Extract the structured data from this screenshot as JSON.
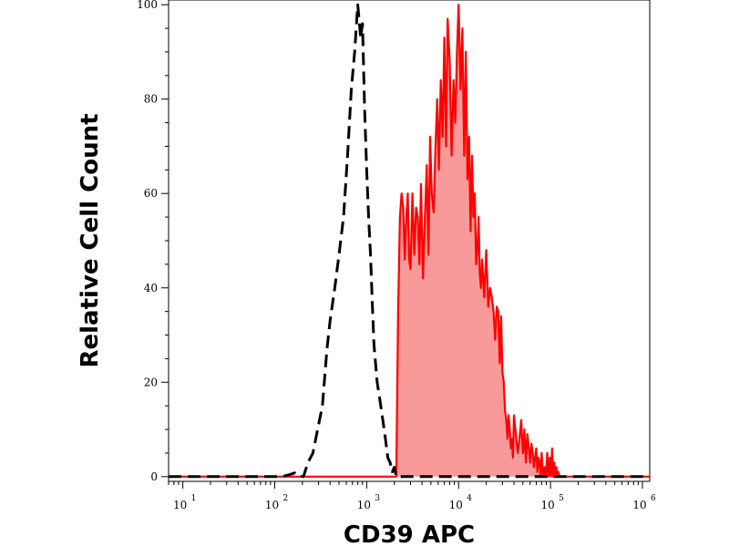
{
  "chart_data": {
    "type": "area",
    "title": "",
    "xlabel": "CD39 APC",
    "ylabel": "Relative Cell Count",
    "xscale": "log",
    "xlim": [
      7,
      1200000
    ],
    "ylim": [
      -1,
      101
    ],
    "grid": false,
    "x_ticks": [
      {
        "base": "10",
        "exp": "1",
        "value": 10
      },
      {
        "base": "10",
        "exp": "2",
        "value": 100
      },
      {
        "base": "10",
        "exp": "3",
        "value": 1000
      },
      {
        "base": "10",
        "exp": "4",
        "value": 10000
      },
      {
        "base": "10",
        "exp": "5",
        "value": 100000
      },
      {
        "base": "10",
        "exp": "6",
        "value": 1000000
      }
    ],
    "y_ticks": [
      {
        "label": "0",
        "value": 0
      },
      {
        "label": "20",
        "value": 20
      },
      {
        "label": "40",
        "value": 40
      },
      {
        "label": "60",
        "value": 60
      },
      {
        "label": "80",
        "value": 80
      },
      {
        "label": "100",
        "value": 100
      }
    ],
    "series": [
      {
        "style": "dashed-line",
        "color": "#000000",
        "x": [
          7,
          50,
          120,
          150,
          165,
          180,
          205,
          230,
          260,
          300,
          330,
          370,
          400,
          450,
          500,
          560,
          620,
          680,
          740,
          800,
          860,
          900,
          950,
          1000,
          1050,
          1100,
          1150,
          1200,
          1300,
          1400,
          1500,
          1600,
          1700,
          1800,
          1900,
          2000,
          2100,
          2200,
          3000,
          10000,
          1200000
        ],
        "y": [
          0,
          0,
          0,
          0.5,
          0.8,
          0.2,
          0,
          3,
          5,
          11,
          15,
          27,
          33,
          40,
          47,
          55,
          68,
          82,
          90,
          100,
          93,
          96,
          78,
          65,
          55,
          47,
          37,
          28,
          20,
          16,
          12,
          8,
          4,
          3,
          1,
          2,
          0,
          0,
          0,
          0,
          0
        ]
      },
      {
        "style": "filled-area",
        "color": "#ff0000",
        "fill": "#f99a9a",
        "x": [
          7,
          2100,
          2200,
          2300,
          2400,
          2500,
          2600,
          2700,
          2800,
          2900,
          3000,
          3150,
          3300,
          3450,
          3600,
          3750,
          3900,
          4100,
          4300,
          4500,
          4700,
          4900,
          5100,
          5350,
          5600,
          5850,
          6100,
          6400,
          6700,
          7000,
          7300,
          7600,
          8000,
          8400,
          8800,
          9200,
          9600,
          10000,
          10500,
          11000,
          11500,
          12000,
          12500,
          13000,
          13500,
          14000,
          14500,
          15000,
          15500,
          16000,
          16500,
          17000,
          17500,
          18000,
          19000,
          20000,
          21000,
          22000,
          23000,
          24000,
          25000,
          26000,
          27000,
          28000,
          29000,
          30000,
          31000,
          32000,
          33000,
          34000,
          35000,
          36000,
          37000,
          38000,
          39000,
          40000,
          42000,
          44000,
          46000,
          48000,
          50000,
          52000,
          54000,
          56000,
          58000,
          60000,
          62000,
          64000,
          66000,
          68000,
          70000,
          72000,
          74000,
          76000,
          78000,
          80000,
          83000,
          86000,
          89000,
          92000,
          95000,
          98000,
          101000,
          104000,
          107000,
          110000,
          113000,
          116000,
          119000,
          122000,
          125000,
          130000,
          1200000
        ],
        "y": [
          0,
          0,
          35,
          55,
          60,
          57,
          46,
          55,
          60,
          46,
          44,
          60,
          47,
          57,
          55,
          45,
          62,
          42,
          55,
          66,
          47,
          72,
          60,
          56,
          70,
          80,
          65,
          84,
          72,
          93,
          70,
          97,
          88,
          68,
          84,
          75,
          90,
          100,
          82,
          95,
          68,
          90,
          63,
          72,
          52,
          68,
          55,
          60,
          45,
          48,
          55,
          43,
          40,
          46,
          38,
          48,
          36,
          40,
          38,
          35,
          29,
          36,
          35,
          24,
          34,
          22,
          20,
          14,
          12,
          8,
          13,
          10,
          6,
          8,
          4,
          13,
          9,
          5,
          8,
          12,
          5,
          10,
          3,
          9,
          6,
          3,
          7,
          5,
          2,
          4,
          6,
          1,
          4,
          3,
          0,
          5,
          0,
          2,
          0,
          5,
          0,
          4,
          0,
          6,
          0,
          3,
          0,
          2,
          0,
          1,
          0,
          0,
          0
        ]
      }
    ]
  }
}
